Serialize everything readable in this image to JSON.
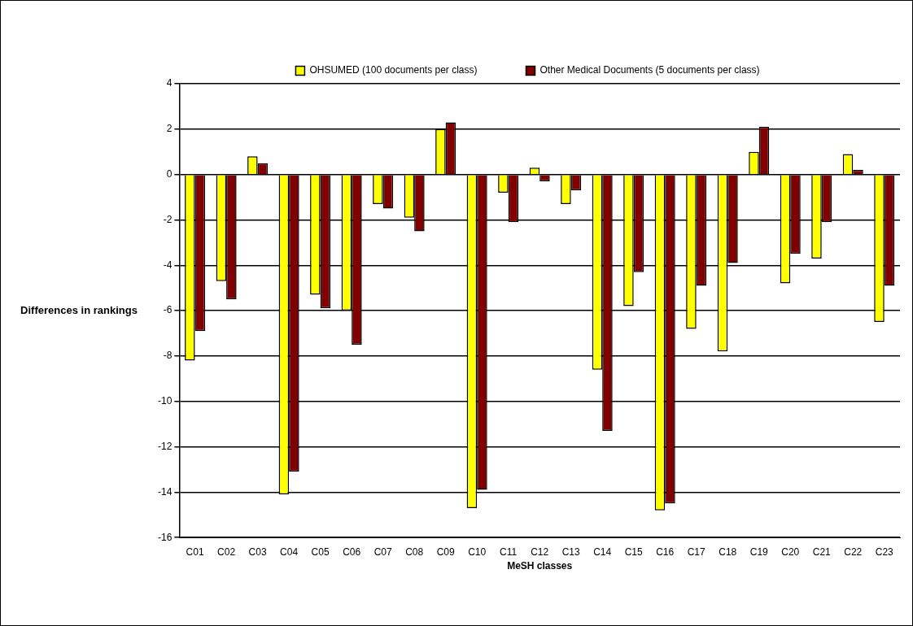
{
  "chart_data": {
    "type": "bar",
    "xlabel": "MeSH classes",
    "ylabel": "Differences in rankings",
    "categories": [
      "C01",
      "C02",
      "C03",
      "C04",
      "C05",
      "C06",
      "C07",
      "C08",
      "C09",
      "C10",
      "C11",
      "C12",
      "C13",
      "C14",
      "C15",
      "C16",
      "C17",
      "C18",
      "C19",
      "C20",
      "C21",
      "C22",
      "C23"
    ],
    "series": [
      {
        "name": "OHSUMED (100 documents per class)",
        "color": "#ffff00",
        "values": [
          -8.2,
          -4.7,
          0.8,
          -14.1,
          -5.3,
          -6.0,
          -1.3,
          -1.9,
          2.0,
          -14.7,
          -0.8,
          0.3,
          -1.3,
          -8.6,
          -5.8,
          -14.8,
          -6.8,
          -7.8,
          1.0,
          -4.8,
          -3.7,
          0.9,
          -6.5
        ]
      },
      {
        "name": "Other Medical Documents (5 documents per class)",
        "color": "#800000",
        "values": [
          -6.9,
          -5.5,
          0.5,
          -13.1,
          -5.9,
          -7.5,
          -1.5,
          -2.5,
          2.3,
          -13.9,
          -2.1,
          -0.3,
          -0.7,
          -11.3,
          -4.3,
          -14.5,
          -4.9,
          -3.9,
          2.1,
          -3.5,
          -2.1,
          0.2,
          -4.9
        ]
      }
    ],
    "ylim": [
      -16,
      4
    ],
    "yticks": [
      -16,
      -14,
      -12,
      -10,
      -8,
      -6,
      -4,
      -2,
      0,
      2,
      4
    ],
    "grid": "y",
    "legend": "top"
  }
}
